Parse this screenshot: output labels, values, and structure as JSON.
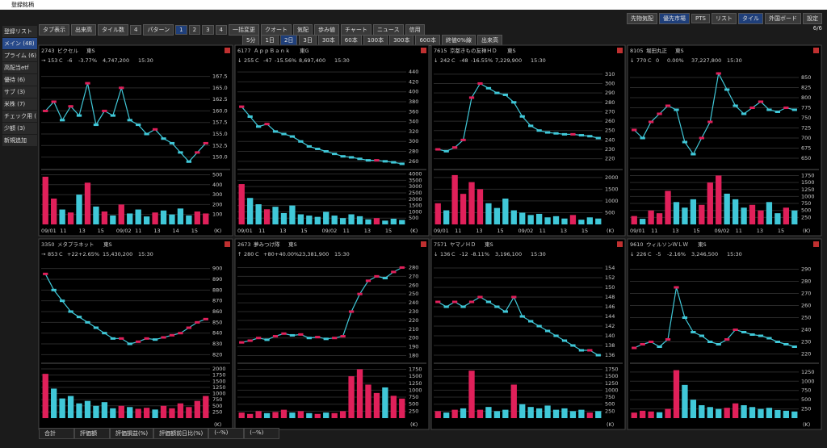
{
  "header": {
    "title": "登録銘柄",
    "buttons": [
      "先物気配",
      "優先市場",
      "PTS",
      "リスト",
      "タイル",
      "外国ボード",
      "設定"
    ],
    "page": "6/6"
  },
  "toolbar": {
    "row1": [
      "タブ表示",
      "出来高",
      "タイル数",
      "4",
      "パターン",
      "1",
      "2",
      "3",
      "4",
      "一括変更",
      "クオート",
      "気配",
      "歩み値",
      "チャート",
      "ニュース",
      "信用"
    ],
    "row2": [
      "5分",
      "1日",
      "2日",
      "3日",
      "30本",
      "60本",
      "100本",
      "300本",
      "600本",
      "終値0%線",
      "出来高"
    ]
  },
  "sidebar": [
    "登録リスト",
    "メイン (48)",
    "プライム (6)",
    "高配当etf",
    "優待 (6)",
    "サブ (3)",
    "米株 (7)",
    "チェック用 (",
    "少額 (3)",
    "新規追加"
  ],
  "footer": [
    "合計",
    "評価額",
    "評価損益(%)",
    "評価額前日比(%)",
    "(--%)",
    "(--%)"
  ],
  "tiles": [
    {
      "code": "2743",
      "name": "ピクセル",
      "market": "東S",
      "arrow": "→",
      "price": "153",
      "flag": "C",
      "change": "-6",
      "pct": "-3.77%",
      "volume": "4,747,200",
      "time": "15:30",
      "ylim": [
        148,
        169
      ],
      "yticks": [
        {
          "value": 150,
          "label": "150.0"
        },
        {
          "value": 152.5,
          "label": "152.5"
        },
        {
          "value": 155,
          "label": "155.0"
        },
        {
          "value": 157.5,
          "label": "157.5"
        },
        {
          "value": 160,
          "label": "160.0"
        },
        {
          "value": 162.5,
          "label": "162.5"
        },
        {
          "value": 165,
          "label": "165.0"
        },
        {
          "value": 167.5,
          "label": "167.5"
        }
      ],
      "vlim": [
        0,
        520
      ],
      "vticks": [
        100,
        200,
        300,
        400,
        500
      ],
      "vol_unit": "(K)",
      "xlabels": [
        "09/01",
        "11",
        "13",
        "15",
        "09/02",
        "11",
        "13",
        "14",
        "15"
      ],
      "closes": [
        160,
        162,
        158,
        161,
        159,
        166,
        157,
        160,
        159,
        165,
        158,
        157,
        155,
        156,
        154,
        153,
        151,
        149,
        151,
        153
      ],
      "vols": [
        480,
        260,
        150,
        120,
        300,
        420,
        180,
        130,
        90,
        200,
        110,
        150,
        80,
        120,
        140,
        100,
        160,
        90,
        130,
        110
      ]
    },
    {
      "code": "6177",
      "name": "ＡｐｐＢａｎｋ",
      "market": "東G",
      "arrow": "↓",
      "price": "255",
      "flag": "C",
      "change": "-47",
      "pct": "-15.56%",
      "volume": "8,697,400",
      "time": "15:30",
      "ylim": [
        250,
        445
      ],
      "yticks": [
        260,
        280,
        300,
        320,
        340,
        360,
        380,
        400,
        420,
        440
      ],
      "vlim": [
        0,
        4100
      ],
      "vticks": [
        500,
        1000,
        1500,
        2000,
        2500,
        3000,
        3500,
        4000
      ],
      "vol_unit": "(K)",
      "xlabels": [
        "09/01",
        "11",
        "13",
        "15",
        "09/02",
        "11",
        "13",
        "15"
      ],
      "closes": [
        370,
        350,
        330,
        335,
        320,
        315,
        310,
        300,
        290,
        285,
        280,
        275,
        270,
        268,
        265,
        262,
        262,
        260,
        258,
        255
      ],
      "vols": [
        3200,
        2100,
        1600,
        1200,
        1400,
        900,
        1500,
        800,
        700,
        600,
        1000,
        700,
        500,
        800,
        650,
        400,
        500,
        300,
        450,
        350
      ]
    },
    {
      "code": "7615",
      "name": "京都きもの友禅ＨＤ",
      "market": "東S",
      "arrow": "↓",
      "price": "242",
      "flag": "C",
      "change": "-48",
      "pct": "-16.55%",
      "volume": "7,229,900",
      "time": "15:30",
      "ylim": [
        212,
        315
      ],
      "yticks": [
        220,
        230,
        240,
        250,
        260,
        270,
        280,
        290,
        300,
        310
      ],
      "vlim": [
        0,
        2200
      ],
      "vticks": [
        500,
        1000,
        1500,
        2000
      ],
      "vol_unit": "(K)",
      "xlabels": [
        "09/01",
        "11",
        "13",
        "15",
        "09/02",
        "11",
        "13",
        "15"
      ],
      "closes": [
        230,
        228,
        232,
        240,
        285,
        300,
        295,
        290,
        288,
        280,
        265,
        255,
        250,
        248,
        247,
        246,
        246,
        245,
        244,
        242
      ],
      "vols": [
        900,
        600,
        2100,
        1300,
        1800,
        1500,
        900,
        700,
        1100,
        600,
        500,
        400,
        450,
        300,
        350,
        250,
        400,
        200,
        300,
        250
      ]
    },
    {
      "code": "8105",
      "name": "堀田丸正",
      "market": "東S",
      "arrow": "↓",
      "price": "770",
      "flag": "C",
      "change": "0",
      "pct": "0.00%",
      "volume": "37,227,800",
      "time": "15:30",
      "ylim": [
        630,
        870
      ],
      "yticks": [
        650,
        675,
        700,
        725,
        750,
        775,
        800,
        825,
        850
      ],
      "vlim": [
        0,
        1850
      ],
      "vticks": [
        250,
        500,
        750,
        1000,
        1250,
        1500,
        1750
      ],
      "vol_unit": "(K)",
      "xlabels": [
        "09/01",
        "11",
        "13",
        "15",
        "09/02",
        "11",
        "13",
        "15"
      ],
      "closes": [
        720,
        700,
        740,
        760,
        780,
        770,
        690,
        660,
        700,
        740,
        860,
        820,
        780,
        760,
        775,
        790,
        770,
        765,
        775,
        770
      ],
      "vols": [
        300,
        200,
        500,
        400,
        1200,
        800,
        600,
        900,
        700,
        1500,
        1750,
        1100,
        900,
        600,
        700,
        500,
        800,
        400,
        600,
        500
      ]
    },
    {
      "code": "3350",
      "name": "メタプラネット",
      "market": "東S",
      "arrow": "→",
      "price": "853",
      "flag": "C",
      "change": "+22",
      "pct": "+2.65%",
      "volume": "15,430,200",
      "time": "15:30",
      "ylim": [
        815,
        905
      ],
      "yticks": [
        820,
        830,
        840,
        850,
        860,
        870,
        880,
        890,
        900
      ],
      "vlim": [
        0,
        2100
      ],
      "vticks": [
        250,
        500,
        750,
        1000,
        1250,
        1500,
        1750,
        2000
      ],
      "vol_unit": "(K)",
      "xlabels": [],
      "closes": [
        895,
        880,
        870,
        860,
        855,
        850,
        845,
        840,
        835,
        835,
        830,
        832,
        835,
        834,
        836,
        838,
        840,
        845,
        850,
        853
      ],
      "vols": [
        1800,
        1200,
        800,
        900,
        600,
        700,
        500,
        650,
        400,
        500,
        450,
        380,
        420,
        350,
        500,
        400,
        600,
        450,
        700,
        900
      ]
    },
    {
      "code": "2673",
      "name": "夢みつけ隊",
      "market": "東S",
      "arrow": "↑",
      "price": "280",
      "flag": "C",
      "change": "+80",
      "pct": "+40.00%",
      "volume": "23,381,900",
      "time": "15:30",
      "ylim": [
        175,
        285
      ],
      "yticks": [
        180,
        190,
        200,
        210,
        220,
        230,
        240,
        250,
        260,
        270,
        280
      ],
      "vlim": [
        0,
        1850
      ],
      "vticks": [
        250,
        500,
        750,
        1000,
        1250,
        1500,
        1750
      ],
      "vol_unit": "(K)",
      "xlabels": [],
      "closes": [
        195,
        197,
        200,
        198,
        202,
        205,
        203,
        204,
        200,
        201,
        199,
        200,
        202,
        230,
        250,
        265,
        270,
        268,
        275,
        280
      ],
      "vols": [
        200,
        150,
        250,
        180,
        220,
        300,
        200,
        250,
        180,
        150,
        200,
        180,
        250,
        1500,
        1750,
        1200,
        900,
        1100,
        800,
        700
      ]
    },
    {
      "code": "7571",
      "name": "ヤマノＨＤ",
      "market": "東S",
      "arrow": "↓",
      "price": "136",
      "flag": "C",
      "change": "-12",
      "pct": "-8.11%",
      "volume": "3,196,100",
      "time": "15:30",
      "ylim": [
        135,
        155
      ],
      "yticks": [
        136,
        138,
        140,
        142,
        144,
        146,
        148,
        150,
        152,
        154
      ],
      "vlim": [
        0,
        1850
      ],
      "vticks": [
        250,
        500,
        750,
        1000,
        1250,
        1500,
        1750
      ],
      "vol_unit": "(K)",
      "xlabels": [],
      "closes": [
        147,
        146,
        147,
        146,
        147,
        148,
        147,
        146,
        145,
        148,
        144,
        143,
        142,
        141,
        140,
        139,
        138,
        137,
        137,
        136
      ],
      "vols": [
        250,
        200,
        300,
        350,
        1700,
        300,
        400,
        250,
        300,
        1200,
        500,
        400,
        350,
        450,
        300,
        350,
        250,
        300,
        200,
        250
      ]
    },
    {
      "code": "9610",
      "name": "ウィルソンＷＬＷ",
      "market": "東S",
      "arrow": "↓",
      "price": "226",
      "flag": "C",
      "change": "-5",
      "pct": "-2.16%",
      "volume": "3,246,500",
      "time": "15:30",
      "ylim": [
        215,
        295
      ],
      "yticks": [
        220,
        230,
        240,
        250,
        260,
        270,
        280,
        290
      ],
      "vlim": [
        0,
        1400
      ],
      "vticks": [
        250,
        500,
        750,
        1000,
        1250
      ],
      "vol_unit": "(K)",
      "xlabels": [],
      "closes": [
        225,
        228,
        230,
        226,
        232,
        275,
        250,
        238,
        235,
        230,
        228,
        232,
        240,
        238,
        236,
        235,
        233,
        230,
        228,
        226
      ],
      "vols": [
        150,
        200,
        180,
        160,
        250,
        1300,
        900,
        500,
        350,
        300,
        250,
        280,
        400,
        350,
        300,
        250,
        280,
        220,
        200,
        180
      ]
    }
  ]
}
